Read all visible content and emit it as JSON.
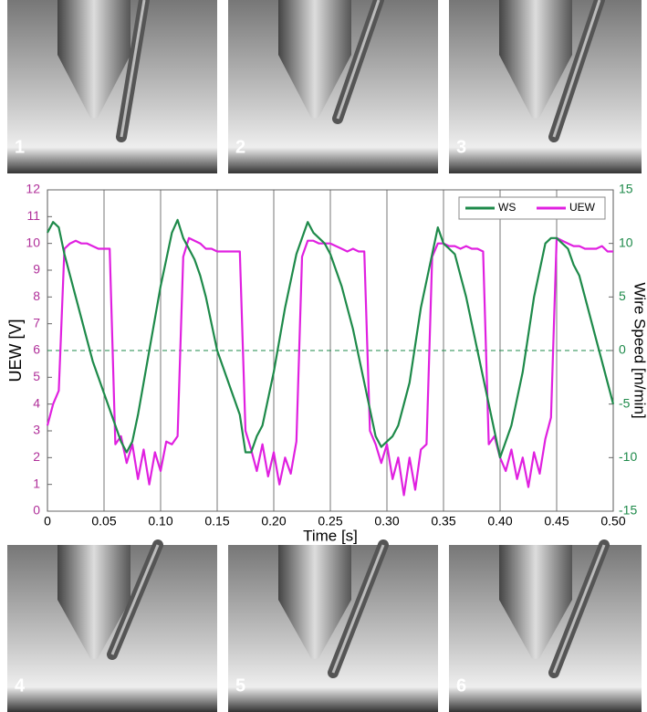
{
  "chart_data": {
    "type": "line",
    "xlabel": "Time [s]",
    "ylabel": "UEW [V]",
    "y2label": "Wire Speed [m/min]",
    "panels": [
      "1",
      "2",
      "3",
      "4",
      "5",
      "6"
    ],
    "x": [
      0,
      0.005,
      0.01,
      0.015,
      0.02,
      0.025,
      0.03,
      0.035,
      0.04,
      0.045,
      0.05,
      0.055,
      0.06,
      0.065,
      0.07,
      0.075,
      0.08,
      0.085,
      0.09,
      0.095,
      0.1,
      0.105,
      0.11,
      0.115,
      0.12,
      0.125,
      0.13,
      0.135,
      0.14,
      0.145,
      0.15,
      0.155,
      0.16,
      0.165,
      0.17,
      0.175,
      0.18,
      0.185,
      0.19,
      0.195,
      0.2,
      0.205,
      0.21,
      0.215,
      0.22,
      0.225,
      0.23,
      0.235,
      0.24,
      0.245,
      0.25,
      0.255,
      0.26,
      0.265,
      0.27,
      0.275,
      0.28,
      0.285,
      0.29,
      0.295,
      0.3,
      0.305,
      0.31,
      0.315,
      0.32,
      0.325,
      0.33,
      0.335,
      0.34,
      0.345,
      0.35,
      0.355,
      0.36,
      0.365,
      0.37,
      0.375,
      0.38,
      0.385,
      0.39,
      0.395,
      0.4,
      0.405,
      0.41,
      0.415,
      0.42,
      0.425,
      0.43,
      0.435,
      0.44,
      0.445,
      0.45,
      0.455,
      0.46,
      0.465,
      0.47,
      0.475,
      0.48,
      0.485,
      0.49,
      0.495,
      0.5
    ],
    "series": [
      {
        "name": "WS",
        "color": "#1e8a4a",
        "axis": "y2",
        "values": [
          11,
          12,
          11.5,
          9,
          7,
          5,
          3,
          1,
          -1,
          -2.5,
          -4,
          -5.5,
          -7,
          -8.5,
          -9.5,
          -8.5,
          -6,
          -3,
          0,
          3,
          6,
          8.5,
          11,
          12.2,
          10.5,
          9.5,
          8.5,
          7,
          5,
          2.5,
          0,
          -1.5,
          -3,
          -4.5,
          -6,
          -9.5,
          -9.5,
          -8,
          -7,
          -4.5,
          -2,
          1,
          4,
          6.5,
          9,
          10.5,
          12,
          11,
          10.5,
          10,
          9,
          7.5,
          6,
          4,
          2,
          -0.5,
          -3,
          -5.5,
          -8,
          -9,
          -8.5,
          -8,
          -7,
          -5,
          -3,
          0.5,
          4,
          6.5,
          9,
          11.5,
          10,
          9.5,
          9,
          7,
          5,
          2.5,
          0,
          -2.5,
          -5,
          -7.5,
          -10,
          -8.5,
          -7,
          -4.5,
          -2,
          1.5,
          5,
          7.5,
          10,
          10.5,
          10.5,
          10,
          9.5,
          8,
          7,
          5,
          3,
          1,
          -1,
          -3,
          -5
        ]
      },
      {
        "name": "UEW",
        "color": "#e020e0",
        "values": [
          3.2,
          4,
          4.5,
          9.8,
          10,
          10.1,
          10,
          10,
          9.9,
          9.8,
          9.8,
          9.8,
          2.5,
          2.8,
          1.8,
          2.5,
          1.2,
          2.3,
          1,
          2.2,
          1.5,
          2.6,
          2.5,
          2.8,
          9.5,
          10.2,
          10.1,
          10,
          9.8,
          9.8,
          9.7,
          9.7,
          9.7,
          9.7,
          9.7,
          3,
          2.3,
          1.5,
          2.5,
          1.3,
          2.2,
          1,
          2,
          1.4,
          2.6,
          9.5,
          10.1,
          10.1,
          10,
          10,
          10,
          9.9,
          9.8,
          9.7,
          9.8,
          9.7,
          9.7,
          3,
          2.5,
          1.8,
          2.5,
          1.2,
          2,
          0.6,
          2,
          0.8,
          2.3,
          2.5,
          9.5,
          10,
          10,
          9.9,
          9.9,
          9.8,
          9.9,
          9.8,
          9.8,
          9.7,
          2.5,
          2.8,
          2,
          1.5,
          2.3,
          1.2,
          2,
          0.9,
          2.2,
          1.4,
          2.7,
          3.5,
          10.2,
          10.1,
          10,
          9.9,
          9.9,
          9.8,
          9.8,
          9.8,
          9.9,
          9.7,
          9.7
        ]
      }
    ],
    "xlim": [
      0,
      0.5
    ],
    "xticks": [
      0,
      0.05,
      {
        "value": 0.1,
        "label": "0.10"
      },
      0.15,
      {
        "value": 0.2,
        "label": "0.20"
      },
      0.25,
      {
        "value": 0.3,
        "label": "0.30"
      },
      0.35,
      {
        "value": 0.4,
        "label": "0.40"
      },
      0.45,
      {
        "value": 0.5,
        "label": "0.50"
      }
    ],
    "ylim": [
      0,
      12
    ],
    "yticks": [
      0,
      1,
      2,
      3,
      4,
      5,
      6,
      7,
      8,
      9,
      10,
      11,
      12
    ],
    "ytick_color": "#b0309a",
    "y2lim": [
      -15,
      15
    ],
    "y2ticks": [
      -15,
      -10,
      -5,
      0,
      5,
      10,
      15
    ],
    "y2tick_color": "#1e8a4a",
    "grid": true,
    "legend": "upper right"
  }
}
